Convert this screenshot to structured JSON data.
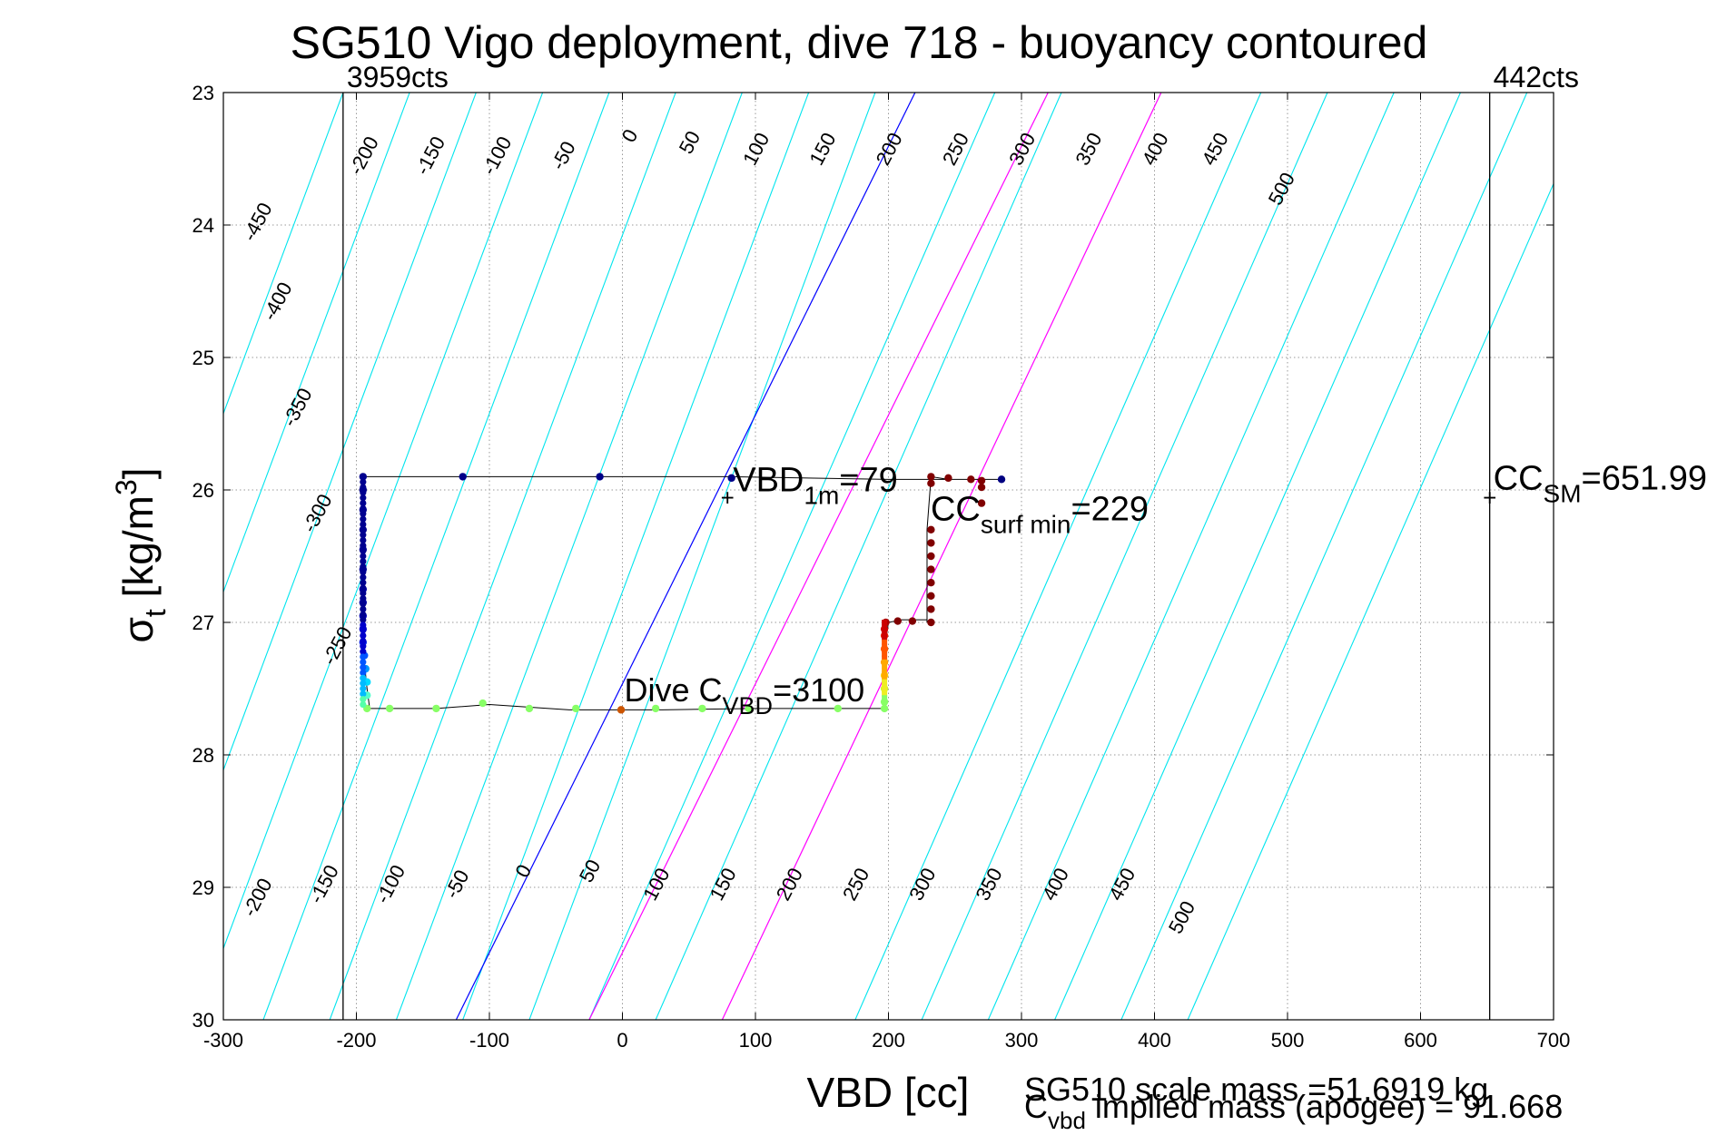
{
  "chart_data": {
    "type": "scatter",
    "title": "SG510 Vigo deployment, dive 718 - buoyancy contoured",
    "xlabel": "VBD [cc]",
    "ylabel_main": "σ",
    "ylabel_sub": "t",
    "ylabel_unit": " [kg/m",
    "ylabel_sup": "3",
    "ylabel_close": "]",
    "xlim": [
      -300,
      700
    ],
    "ylim": [
      23,
      30
    ],
    "y_reversed": true,
    "xticks": [
      -300,
      -200,
      -100,
      0,
      100,
      200,
      300,
      400,
      500,
      600,
      700
    ],
    "yticks": [
      23,
      24,
      25,
      26,
      27,
      28,
      29,
      30
    ],
    "grid": true,
    "footer_line1": "SG510 scale mass =51.6919 kg",
    "footer_line2_main": "C",
    "footer_line2_sub": "vbd",
    "footer_line2_rest": " implied mass (apogee) = 91.668",
    "colors": {
      "contour": "#00e5ee",
      "zero_line": "#0000ff",
      "limit_lines": "#ff00ff",
      "annotation": "#ff0000",
      "trace": "#000000",
      "vertical_limits": "#000000"
    },
    "vertical_lines": [
      {
        "x": -210,
        "label": "3959cts"
      },
      {
        "x": 651.99,
        "label": "442cts"
      }
    ],
    "contours": {
      "levels": [
        -450,
        -400,
        -350,
        -300,
        -250,
        -200,
        -150,
        -100,
        -50,
        0,
        50,
        100,
        150,
        200,
        250,
        300,
        350,
        400,
        450,
        500
      ],
      "x_at_sigma30": [
        -470,
        -420,
        -370,
        -320,
        -270,
        -220,
        -170,
        -120,
        -70,
        -125,
        -25,
        25,
        75,
        125,
        175,
        225,
        275,
        325,
        375,
        425
      ],
      "x_at_sigma23": [
        -210,
        -160,
        -110,
        -60,
        -10,
        40,
        90,
        140,
        190,
        220,
        280,
        330,
        380,
        430,
        480,
        530,
        580,
        630,
        680,
        730
      ],
      "top_labels": [
        "-450",
        "-400",
        "-350",
        "-300",
        "-250",
        "-200",
        "-150",
        "-100",
        "-50",
        "0",
        "50",
        "100",
        "150",
        "200",
        "250",
        "300",
        "350",
        "400",
        "450",
        "500"
      ],
      "bottom_labels": [
        "-200",
        "-150",
        "-100",
        "-50",
        "0",
        "50",
        "100",
        "150",
        "200",
        "250",
        "300",
        "350",
        "400",
        "450",
        "500"
      ]
    },
    "special_lines": [
      {
        "name": "zero",
        "x30": -125,
        "x23": 220,
        "color": "#0000ff"
      },
      {
        "name": "limit-lo",
        "x30": -25,
        "x23": 320,
        "color": "#ff00ff"
      },
      {
        "name": "limit-hi",
        "x30": 75,
        "x23": 405,
        "color": "#ff00ff"
      }
    ],
    "annotations": [
      {
        "x": 79,
        "y": 26.05,
        "marker": "+",
        "main": "VBD",
        "sub": "1m",
        "rest": "=79"
      },
      {
        "x": 229,
        "y": 26.05,
        "marker": "",
        "main": "CC",
        "sub": "surf min",
        "rest": "=229"
      },
      {
        "x": 651.99,
        "y": 26.05,
        "marker": "+",
        "main": "CC",
        "sub": "SM",
        "rest": "=651.99"
      }
    ],
    "dive_label": {
      "main": "Dive C",
      "sub": "VBD",
      "rest": "=3100",
      "x": 0,
      "y": 27.65
    },
    "trace": {
      "x": [
        285,
        270,
        260,
        245,
        232,
        229,
        229,
        229,
        229,
        229,
        229,
        210,
        200,
        197,
        197,
        197,
        197,
        170,
        100,
        30,
        -40,
        -100,
        -140,
        -170,
        -190,
        -192,
        -195,
        -195,
        -195,
        -195,
        -195,
        -195,
        -195,
        -120,
        -20,
        80,
        200,
        270
      ],
      "y": [
        25.92,
        25.92,
        25.92,
        25.92,
        25.9,
        26.3,
        26.6,
        26.8,
        26.95,
        27.0,
        26.98,
        26.98,
        27.0,
        27.2,
        27.4,
        27.55,
        27.65,
        27.65,
        27.65,
        27.66,
        27.66,
        27.62,
        27.65,
        27.65,
        27.65,
        27.5,
        27.2,
        27.0,
        26.7,
        26.4,
        26.1,
        25.9,
        25.9,
        25.9,
        25.9,
        25.9,
        25.92,
        25.92
      ]
    },
    "points": [
      {
        "x": 285,
        "y": 25.92,
        "color": "#000080"
      },
      {
        "x": 270,
        "y": 25.93,
        "color": "#800000"
      },
      {
        "x": 262,
        "y": 25.92,
        "color": "#800000"
      },
      {
        "x": 245,
        "y": 25.91,
        "color": "#800000"
      },
      {
        "x": 232,
        "y": 25.9,
        "color": "#800000"
      },
      {
        "x": 232,
        "y": 25.95,
        "color": "#800000"
      },
      {
        "x": 270,
        "y": 25.98,
        "color": "#800000"
      },
      {
        "x": 270,
        "y": 26.1,
        "color": "#800000"
      },
      {
        "x": 232,
        "y": 26.3,
        "color": "#800000"
      },
      {
        "x": 232,
        "y": 26.4,
        "color": "#800000"
      },
      {
        "x": 232,
        "y": 26.5,
        "color": "#800000"
      },
      {
        "x": 232,
        "y": 26.6,
        "color": "#800000"
      },
      {
        "x": 232,
        "y": 26.7,
        "color": "#800000"
      },
      {
        "x": 232,
        "y": 26.8,
        "color": "#800000"
      },
      {
        "x": 232,
        "y": 26.9,
        "color": "#800000"
      },
      {
        "x": 232,
        "y": 27.0,
        "color": "#800000"
      },
      {
        "x": 218,
        "y": 26.99,
        "color": "#800000"
      },
      {
        "x": 207,
        "y": 26.99,
        "color": "#800000"
      },
      {
        "x": 198,
        "y": 27.0,
        "color": "#aa0000"
      },
      {
        "x": 197,
        "y": 27.05,
        "color": "#cc0000"
      },
      {
        "x": 197,
        "y": 27.1,
        "color": "#ee2200"
      },
      {
        "x": 197,
        "y": 27.2,
        "color": "#ff5500"
      },
      {
        "x": 197,
        "y": 27.3,
        "color": "#ff9900"
      },
      {
        "x": 197,
        "y": 27.4,
        "color": "#ffcc00"
      },
      {
        "x": 197,
        "y": 27.5,
        "color": "#ccee33"
      },
      {
        "x": 197,
        "y": 27.6,
        "color": "#88ff66"
      },
      {
        "x": 197,
        "y": 27.65,
        "color": "#88ff66"
      },
      {
        "x": 162,
        "y": 27.65,
        "color": "#88ff66"
      },
      {
        "x": 95,
        "y": 27.65,
        "color": "#88ff66"
      },
      {
        "x": 60,
        "y": 27.65,
        "color": "#88ff66"
      },
      {
        "x": 25,
        "y": 27.65,
        "color": "#88ff66"
      },
      {
        "x": -1,
        "y": 27.66,
        "color": "#cc5500"
      },
      {
        "x": -35,
        "y": 27.65,
        "color": "#88ff66"
      },
      {
        "x": -70,
        "y": 27.65,
        "color": "#88ff66"
      },
      {
        "x": -105,
        "y": 27.61,
        "color": "#88ff66"
      },
      {
        "x": -140,
        "y": 27.65,
        "color": "#88ff66"
      },
      {
        "x": -175,
        "y": 27.65,
        "color": "#88ff66"
      },
      {
        "x": -192,
        "y": 27.65,
        "color": "#88ff66"
      },
      {
        "x": -192,
        "y": 27.55,
        "color": "#55ffcc"
      },
      {
        "x": -192,
        "y": 27.45,
        "color": "#00ddff"
      },
      {
        "x": -193,
        "y": 27.35,
        "color": "#0099ff"
      },
      {
        "x": -194,
        "y": 27.25,
        "color": "#0055ff"
      },
      {
        "x": -195,
        "y": 27.15,
        "color": "#0022ee"
      },
      {
        "x": -195,
        "y": 27.05,
        "color": "#0000cc"
      },
      {
        "x": -195,
        "y": 26.95,
        "color": "#0000bb"
      },
      {
        "x": -195,
        "y": 26.85,
        "color": "#0000aa"
      },
      {
        "x": -195,
        "y": 26.75,
        "color": "#0000aa"
      },
      {
        "x": -195,
        "y": 26.6,
        "color": "#000099"
      },
      {
        "x": -195,
        "y": 26.45,
        "color": "#000099"
      },
      {
        "x": -195,
        "y": 26.3,
        "color": "#000090"
      },
      {
        "x": -195,
        "y": 26.15,
        "color": "#000090"
      },
      {
        "x": -195,
        "y": 26.0,
        "color": "#000088"
      },
      {
        "x": -195,
        "y": 25.9,
        "color": "#000088"
      },
      {
        "x": -120,
        "y": 25.9,
        "color": "#000088"
      },
      {
        "x": -17,
        "y": 25.9,
        "color": "#000088"
      },
      {
        "x": 82,
        "y": 25.91,
        "color": "#000088"
      }
    ]
  }
}
